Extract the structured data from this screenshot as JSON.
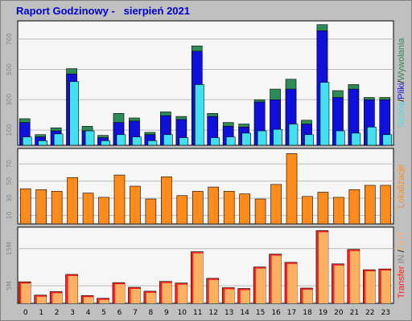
{
  "title": "Raport Godzinowy -   sierpień 2021",
  "colors": {
    "background": "#c0c0c0",
    "plot_bg": "#f6f6f6",
    "hits": "#2e8b57",
    "files": "#1010dd",
    "pages": "#40e0f0",
    "visits": "#ff8c1a",
    "traffic_in": "#ff2020",
    "traffic_out": "#ffb060"
  },
  "chart_data": [
    {
      "type": "bar",
      "categories": [
        "0",
        "1",
        "2",
        "3",
        "4",
        "5",
        "6",
        "7",
        "8",
        "9",
        "10",
        "11",
        "12",
        "13",
        "14",
        "15",
        "16",
        "17",
        "18",
        "19",
        "20",
        "21",
        "22",
        "23"
      ],
      "series": [
        {
          "name": "Wywołania",
          "values": [
            175,
            70,
            115,
            505,
            125,
            65,
            210,
            180,
            85,
            220,
            190,
            655,
            210,
            150,
            140,
            300,
            370,
            435,
            165,
            795,
            360,
            400,
            315,
            315
          ]
        },
        {
          "name": "Pliki",
          "values": [
            150,
            55,
            95,
            470,
            95,
            50,
            150,
            160,
            70,
            195,
            170,
            620,
            190,
            125,
            120,
            285,
            300,
            370,
            140,
            755,
            315,
            370,
            300,
            300
          ]
        },
        {
          "name": "Strony",
          "values": [
            55,
            30,
            75,
            420,
            95,
            30,
            70,
            55,
            30,
            70,
            50,
            400,
            50,
            55,
            80,
            95,
            105,
            140,
            70,
            415,
            95,
            80,
            120,
            70
          ]
        }
      ],
      "yticks": [
        "100",
        "300",
        "500",
        "700"
      ],
      "side_label": [
        "Strony",
        "/",
        "Pliki",
        "/",
        "Wywołania"
      ]
    },
    {
      "type": "bar",
      "categories": [
        "0",
        "1",
        "2",
        "3",
        "4",
        "5",
        "6",
        "7",
        "8",
        "9",
        "10",
        "11",
        "12",
        "13",
        "14",
        "15",
        "16",
        "17",
        "18",
        "19",
        "20",
        "21",
        "22",
        "23"
      ],
      "series": [
        {
          "name": "Lokalizacje",
          "values": [
            41,
            40,
            38,
            54,
            36,
            31,
            57,
            44,
            29,
            55,
            33,
            38,
            43,
            38,
            35,
            29,
            46,
            82,
            32,
            37,
            31,
            40,
            45,
            45
          ]
        }
      ],
      "yticks": [
        "10",
        "30",
        "50",
        "70"
      ],
      "side_label": [
        "Lokalizacje"
      ]
    },
    {
      "type": "bar",
      "categories": [
        "0",
        "1",
        "2",
        "3",
        "4",
        "5",
        "6",
        "7",
        "8",
        "9",
        "10",
        "11",
        "12",
        "13",
        "14",
        "15",
        "16",
        "17",
        "18",
        "19",
        "20",
        "21",
        "22",
        "23"
      ],
      "series": [
        {
          "name": "IN",
          "values": [
            5.5,
            2.1,
            3.0,
            7.4,
            2.0,
            1.3,
            5.3,
            4.1,
            3.1,
            5.6,
            5.2,
            13.2,
            6.4,
            4.0,
            3.8,
            9.3,
            12.6,
            10.5,
            3.9,
            18.6,
            10.1,
            13.8,
            8.6,
            8.8
          ]
        },
        {
          "name": "OUT",
          "values": [
            5.5,
            2.1,
            3.0,
            7.4,
            2.0,
            1.3,
            5.3,
            4.1,
            3.1,
            5.6,
            5.2,
            13.2,
            6.4,
            4.0,
            3.8,
            9.3,
            12.6,
            10.5,
            3.9,
            18.6,
            10.1,
            13.8,
            8.6,
            8.8
          ]
        }
      ],
      "yticks": [
        "5M",
        "15M"
      ],
      "side_label": [
        "Transfer",
        " IN ",
        "/",
        "OUT"
      ]
    }
  ]
}
